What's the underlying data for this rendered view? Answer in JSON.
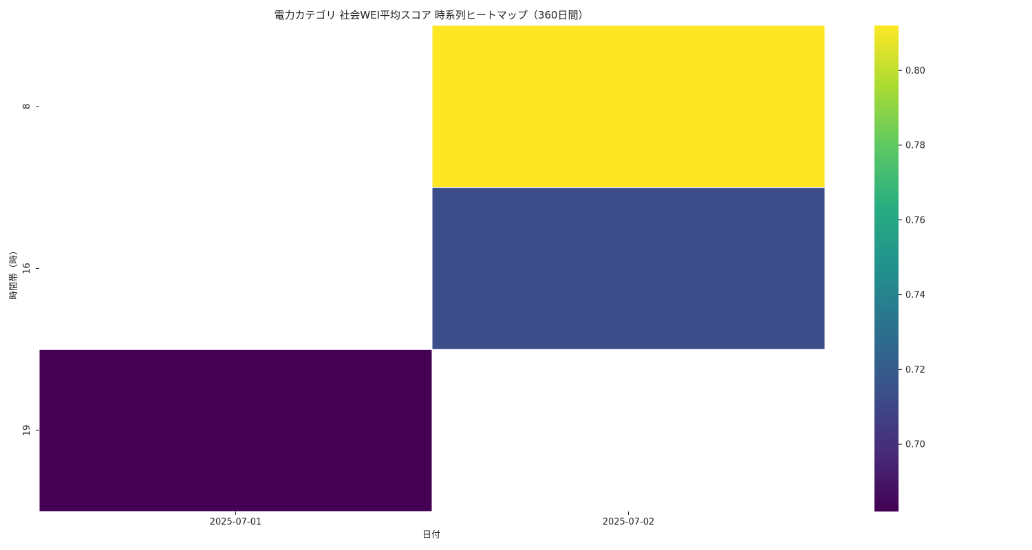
{
  "chart_data": {
    "type": "heatmap",
    "title": "電力カテゴリ 社会WEI平均スコア 時系列ヒートマップ（360日間）",
    "xlabel": "日付",
    "ylabel": "時間帯（時）",
    "x_categories": [
      "2025-07-01",
      "2025-07-02"
    ],
    "y_categories": [
      "8",
      "16",
      "19"
    ],
    "values": [
      [
        null,
        0.812
      ],
      [
        null,
        0.713
      ],
      [
        0.682,
        null
      ]
    ],
    "colormap": "viridis",
    "colorbar": {
      "range": [
        0.682,
        0.812
      ],
      "ticks": [
        0.7,
        0.72,
        0.74,
        0.76,
        0.78,
        0.8
      ],
      "tick_labels": [
        "0.70",
        "0.72",
        "0.74",
        "0.76",
        "0.78",
        "0.80"
      ]
    },
    "missing_color": "#ffffff"
  }
}
